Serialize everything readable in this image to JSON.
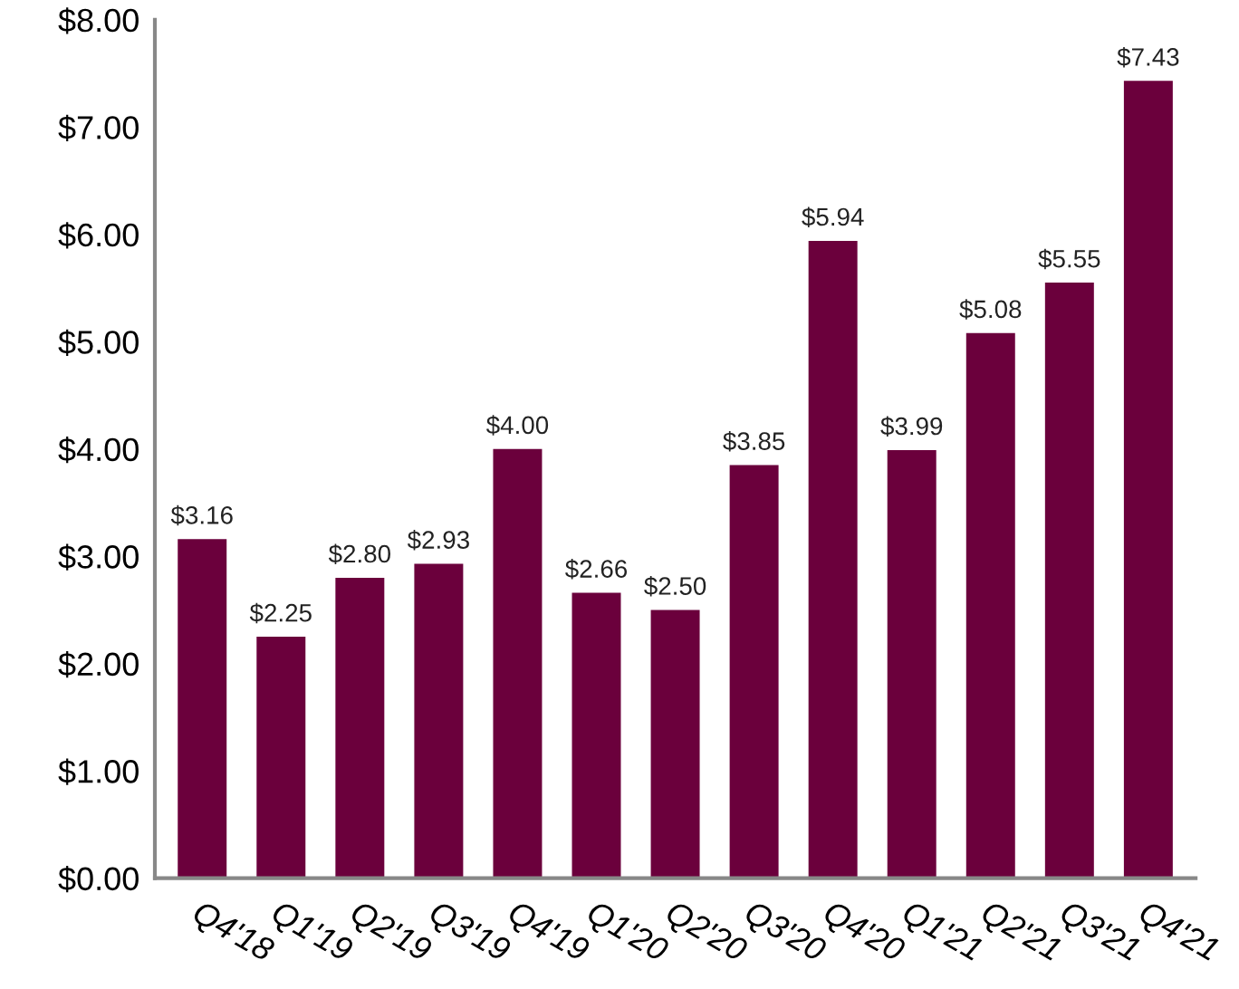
{
  "chart_data": {
    "type": "bar",
    "categories": [
      "Q4'18",
      "Q1'19",
      "Q2'19",
      "Q3'19",
      "Q4'19",
      "Q1'20",
      "Q2'20",
      "Q3'20",
      "Q4'20",
      "Q1'21",
      "Q2'21",
      "Q3'21",
      "Q4'21"
    ],
    "values": [
      3.16,
      2.25,
      2.8,
      2.93,
      4.0,
      2.66,
      2.5,
      3.85,
      5.94,
      3.99,
      5.08,
      5.55,
      7.43
    ],
    "value_labels": [
      "$3.16",
      "$2.25",
      "$2.80",
      "$2.93",
      "$4.00",
      "$2.66",
      "$2.50",
      "$3.85",
      "$5.94",
      "$3.99",
      "$5.08",
      "$5.55",
      "$7.43"
    ],
    "color": "#6b003c",
    "ylim": [
      0,
      8
    ],
    "yticks": [
      {
        "value": 0,
        "label": "$0.00"
      },
      {
        "value": 1,
        "label": "$1.00"
      },
      {
        "value": 2,
        "label": "$2.00"
      },
      {
        "value": 3,
        "label": "$3.00"
      },
      {
        "value": 4,
        "label": "$4.00"
      },
      {
        "value": 5,
        "label": "$5.00"
      },
      {
        "value": 6,
        "label": "$6.00"
      },
      {
        "value": 7,
        "label": "$7.00"
      },
      {
        "value": 8,
        "label": "$8.00"
      }
    ],
    "grid": false,
    "legend": false
  }
}
